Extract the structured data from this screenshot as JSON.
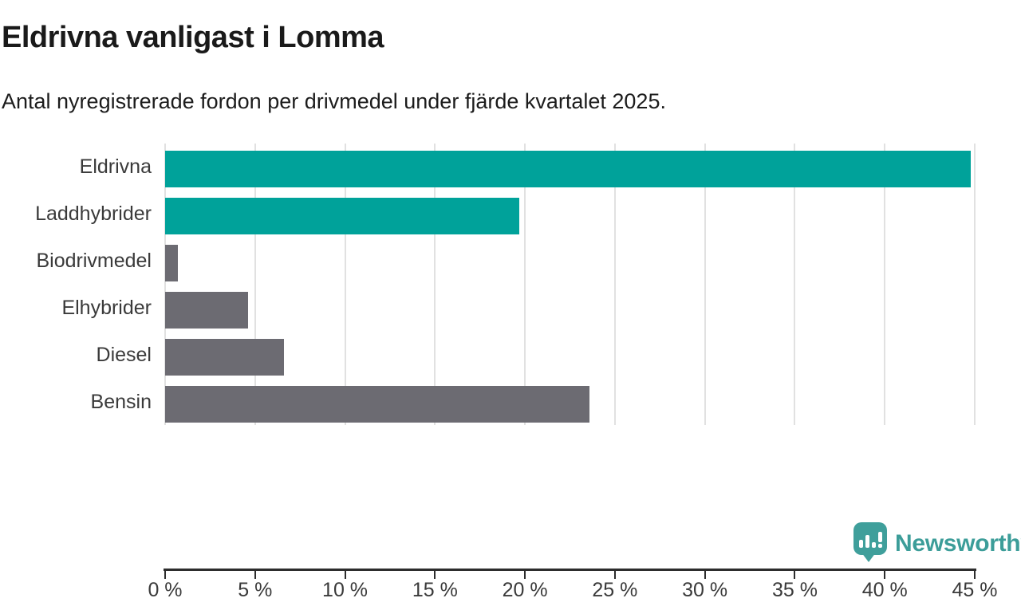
{
  "header": {
    "title": "Eldrivna vanligast i Lomma",
    "subtitle": "Antal nyregistrerade fordon per drivmedel under fjärde kvartalet 2025."
  },
  "chart_data": {
    "type": "bar",
    "orientation": "horizontal",
    "title": "Eldrivna vanligast i Lomma",
    "subtitle": "Antal nyregistrerade fordon per drivmedel under fjärde kvartalet 2025.",
    "categories": [
      "Eldrivna",
      "Laddhybrider",
      "Biodrivmedel",
      "Elhybrider",
      "Diesel",
      "Bensin"
    ],
    "values": [
      44.8,
      19.7,
      0.7,
      4.6,
      6.6,
      23.6
    ],
    "unit": "%",
    "bar_colors": [
      "#00a29a",
      "#00a29a",
      "#6c6b72",
      "#6c6b72",
      "#6c6b72",
      "#6c6b72"
    ],
    "highlight_color": "#00a29a",
    "default_color": "#6c6b72",
    "xlabel": "",
    "ylabel": "",
    "xlim": [
      0,
      45
    ],
    "x_ticks": [
      0,
      5,
      10,
      15,
      20,
      25,
      30,
      35,
      40,
      45
    ],
    "x_tick_labels": [
      "0 %",
      "5 %",
      "10 %",
      "15 %",
      "20 %",
      "25 %",
      "30 %",
      "35 %",
      "40 %",
      "45 %"
    ],
    "grid": "vertical-only",
    "legend": "none"
  },
  "footer": {
    "brand": "Newsworthy",
    "brand_color": "#3c9d99",
    "logo_icon": "bar-chart-speech-bubble-icon"
  }
}
